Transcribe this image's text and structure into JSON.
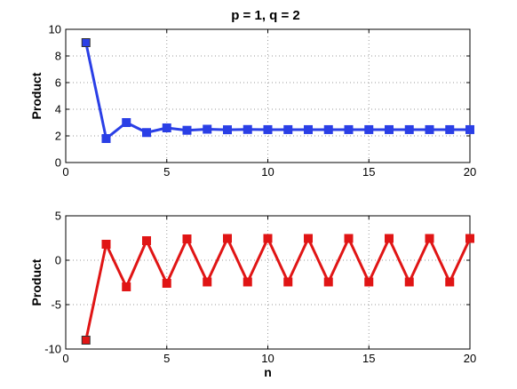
{
  "figure": {
    "title": "p = 1, q = 2"
  },
  "chart_data": [
    {
      "type": "line",
      "title": "p = 1, q = 2",
      "xlabel": "",
      "ylabel": "Product",
      "xlim": [
        0,
        20
      ],
      "ylim": [
        0,
        10
      ],
      "xticks": [
        0,
        5,
        10,
        15,
        20
      ],
      "yticks": [
        0,
        2,
        4,
        6,
        8,
        10
      ],
      "grid": true,
      "series": [
        {
          "color": "#2a3fe6",
          "marker": "square",
          "x": [
            1,
            2,
            3,
            4,
            5,
            6,
            7,
            8,
            9,
            10,
            11,
            12,
            13,
            14,
            15,
            16,
            17,
            18,
            19,
            20
          ],
          "y": [
            9,
            1.8,
            3.0,
            2.25,
            2.6,
            2.42,
            2.5,
            2.46,
            2.48,
            2.47,
            2.47,
            2.47,
            2.47,
            2.47,
            2.47,
            2.47,
            2.47,
            2.47,
            2.47,
            2.47
          ]
        }
      ]
    },
    {
      "type": "line",
      "title": "",
      "xlabel": "n",
      "ylabel": "Product",
      "xlim": [
        0,
        20
      ],
      "ylim": [
        -10,
        5
      ],
      "xticks": [
        0,
        5,
        10,
        15,
        20
      ],
      "yticks": [
        -10,
        -5,
        0,
        5
      ],
      "grid": true,
      "series": [
        {
          "color": "#e01515",
          "marker": "square",
          "x": [
            1,
            2,
            3,
            4,
            5,
            6,
            7,
            8,
            9,
            10,
            11,
            12,
            13,
            14,
            15,
            16,
            17,
            18,
            19,
            20
          ],
          "y": [
            -9,
            1.8,
            -3.0,
            2.2,
            -2.6,
            2.4,
            -2.45,
            2.45,
            -2.45,
            2.45,
            -2.45,
            2.45,
            -2.45,
            2.45,
            -2.45,
            2.45,
            -2.45,
            2.45,
            -2.45,
            2.45
          ]
        }
      ]
    }
  ]
}
